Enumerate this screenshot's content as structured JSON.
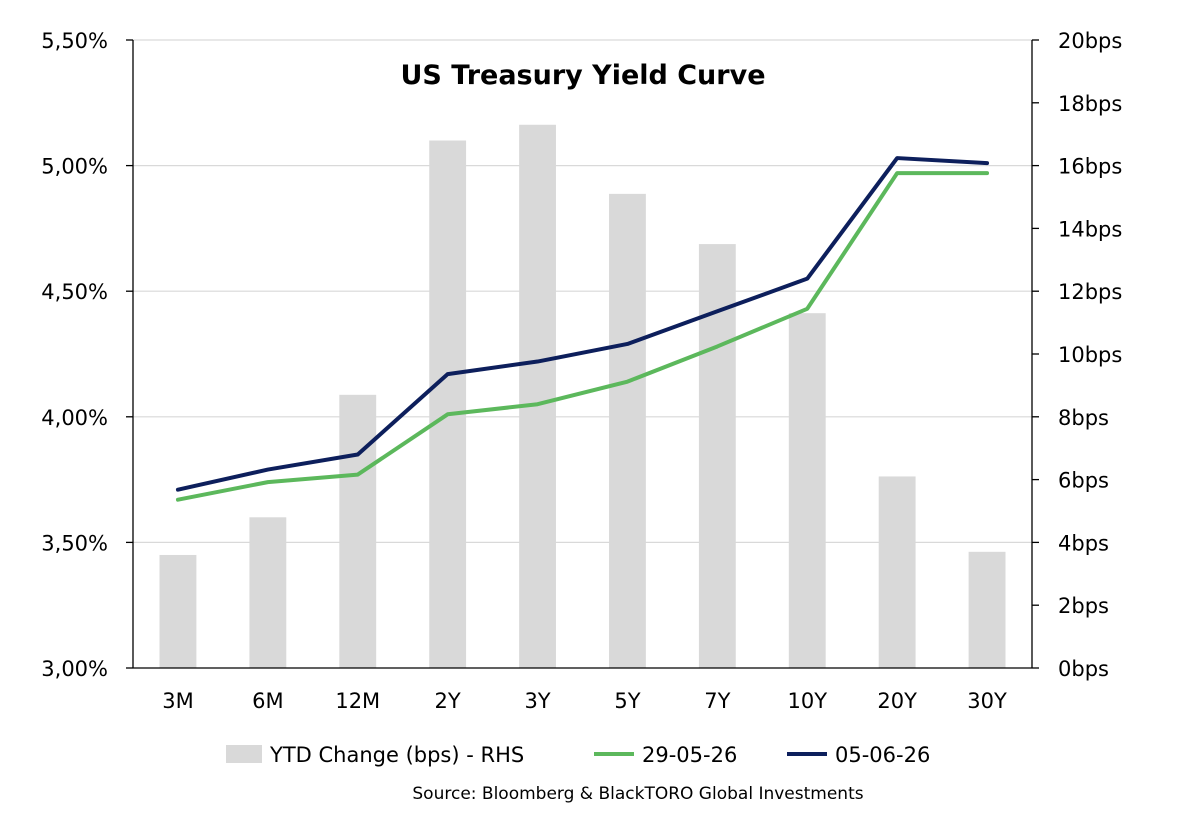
{
  "chart_data": {
    "type": "bar+line",
    "title": "US Treasury Yield Curve",
    "categories": [
      "3M",
      "6M",
      "12M",
      "2Y",
      "3Y",
      "5Y",
      "7Y",
      "10Y",
      "20Y",
      "30Y"
    ],
    "y_left": {
      "ticks": [
        "3,00%",
        "3,50%",
        "4,00%",
        "4,50%",
        "5,00%",
        "5,50%"
      ],
      "ylim": [
        3.0,
        5.5
      ]
    },
    "y_right": {
      "ticks": [
        "0bps",
        "2bps",
        "4bps",
        "6bps",
        "8bps",
        "10bps",
        "12bps",
        "14bps",
        "16bps",
        "18bps",
        "20bps"
      ],
      "ylim": [
        0,
        20
      ]
    },
    "bars": {
      "name": "YTD Change (bps) - RHS",
      "axis": "right",
      "color": "#d9d9d9",
      "values": [
        3.6,
        4.8,
        8.7,
        16.8,
        17.3,
        15.1,
        13.5,
        11.3,
        6.1,
        3.7
      ]
    },
    "series": [
      {
        "name": "29-05-26",
        "axis": "left",
        "color": "#5cb85c",
        "values": [
          3.67,
          3.74,
          3.77,
          4.01,
          4.05,
          4.14,
          4.28,
          4.43,
          4.97,
          4.97
        ]
      },
      {
        "name": "05-06-26",
        "axis": "left",
        "color": "#0d1f5c",
        "values": [
          3.71,
          3.79,
          3.85,
          4.17,
          4.22,
          4.29,
          4.42,
          4.55,
          5.03,
          5.01
        ]
      }
    ],
    "grid": true,
    "legend_position": "bottom"
  },
  "source": "Source: Bloomberg & BlackTORO Global Investments"
}
